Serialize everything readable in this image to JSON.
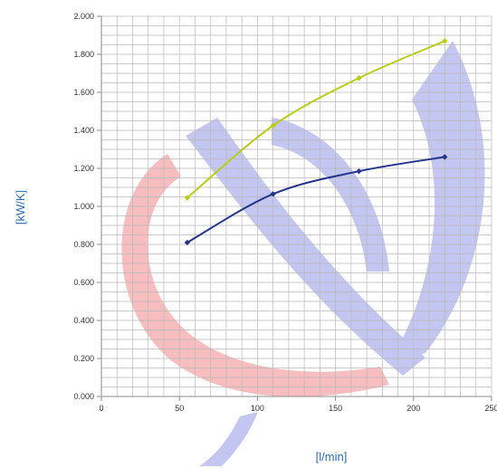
{
  "chart_data": {
    "type": "line",
    "xlabel": "[l/min]",
    "ylabel": "[kW/K]",
    "xlim": [
      0,
      250
    ],
    "ylim": [
      0,
      2.0
    ],
    "x_ticks": [
      "0",
      "50",
      "100",
      "150",
      "200",
      "250"
    ],
    "y_ticks": [
      "0.000",
      "0.200",
      "0.400",
      "0.600",
      "0.800",
      "1.000",
      "1.200",
      "1.400",
      "1.600",
      "1.800",
      "2.000"
    ],
    "grid": true,
    "series": [
      {
        "color": "#b8cc1a",
        "x": [
          55,
          110,
          165,
          220
        ],
        "y": [
          1.045,
          1.425,
          1.675,
          1.87
        ]
      },
      {
        "color": "#24358c",
        "x": [
          55,
          110,
          165,
          220
        ],
        "y": [
          0.81,
          1.065,
          1.185,
          1.26
        ]
      }
    ]
  },
  "colors": {
    "grid": "#b9b9b9",
    "axis": "#8c8c8c",
    "label": "#2b6cb0",
    "watermark_blue": "#3c46d2",
    "watermark_red": "#e6282d"
  }
}
